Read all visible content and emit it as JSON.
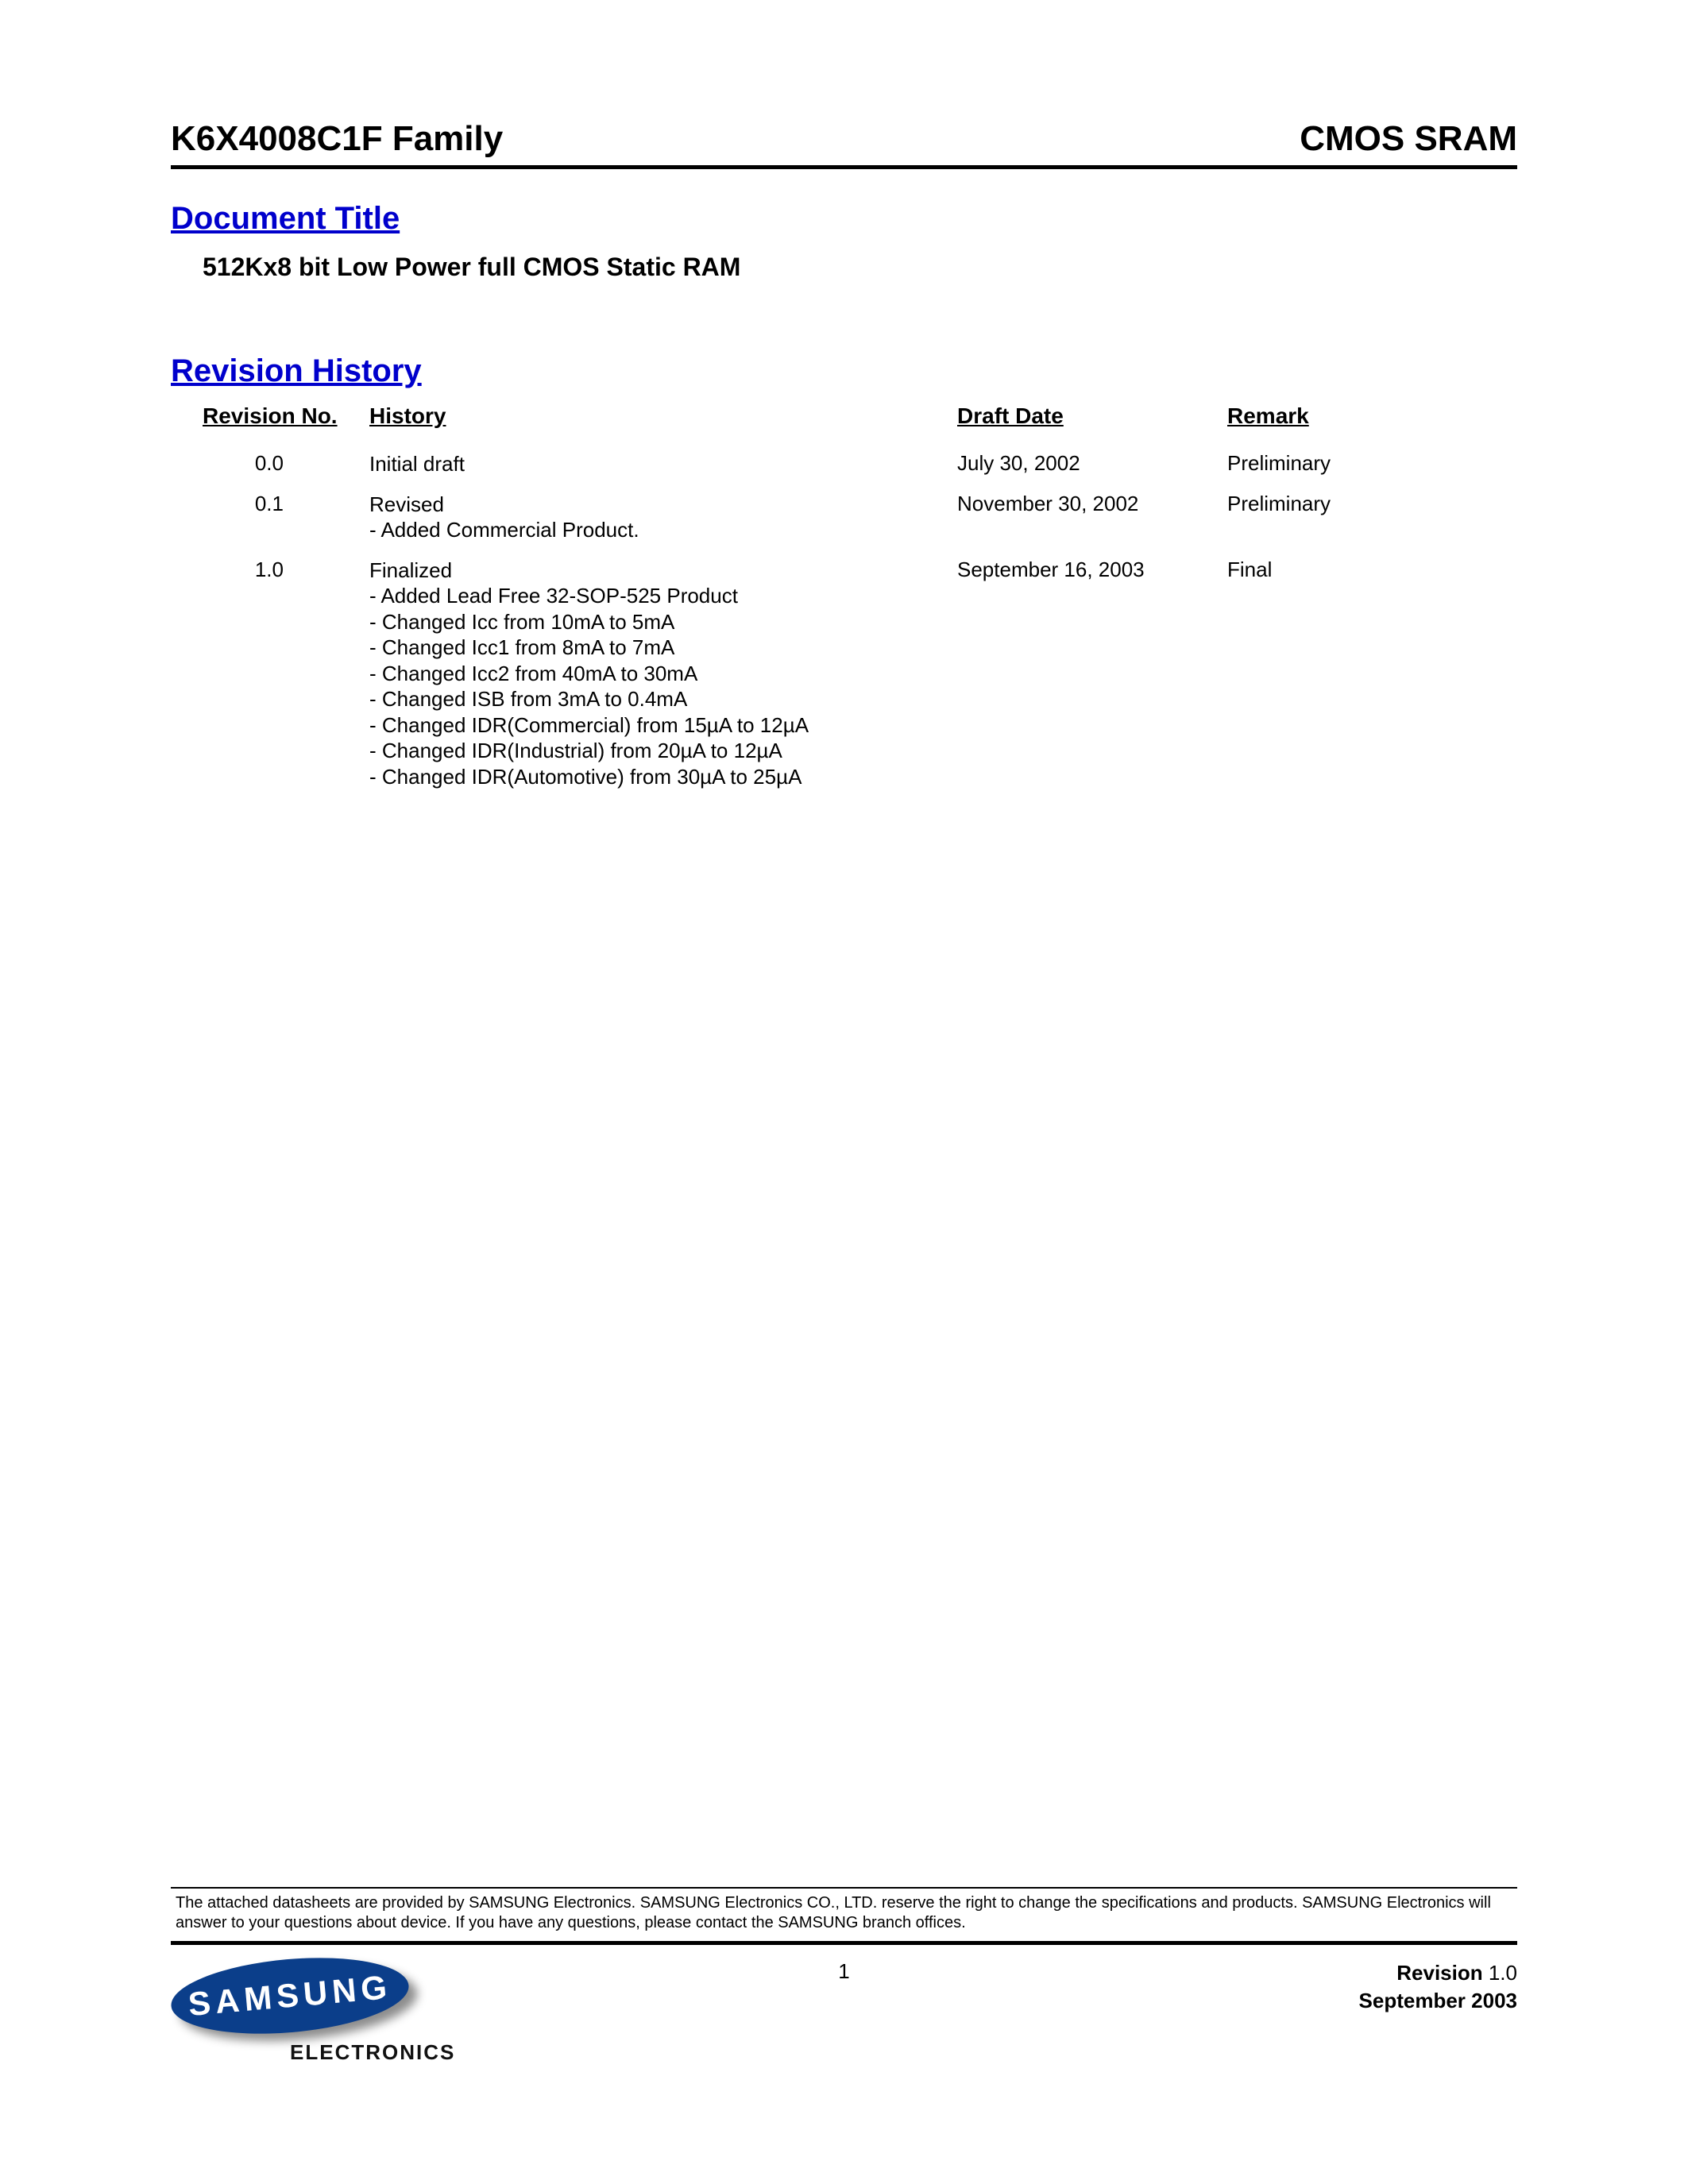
{
  "header": {
    "left": "K6X4008C1F Family",
    "right": "CMOS SRAM"
  },
  "document_title_heading": "Document Title",
  "subtitle": "512Kx8 bit Low Power full CMOS Static RAM",
  "revision_heading": "Revision History",
  "rev_columns": {
    "no": "Revision No.",
    "history": "History",
    "date": "Draft Date",
    "remark": "Remark"
  },
  "revisions": [
    {
      "no": "0.0",
      "history": [
        "Initial draft"
      ],
      "date": "July 30, 2002",
      "remark": "Preliminary"
    },
    {
      "no": "0.1",
      "history": [
        "Revised",
        "- Added Commercial Product."
      ],
      "date": "November 30, 2002",
      "remark": "Preliminary"
    },
    {
      "no": "1.0",
      "history": [
        "Finalized",
        "- Added Lead Free 32-SOP-525 Product",
        "- Changed Icc from 10mA to 5mA",
        "- Changed Icc1 from 8mA to 7mA",
        "- Changed Icc2 from 40mA to 30mA",
        "- Changed ISB from 3mA to 0.4mA",
        "- Changed IDR(Commercial) from 15µA to 12µA",
        "- Changed IDR(Industrial) from 20µA to 12µA",
        "- Changed IDR(Automotive) from 30µA to 25µA"
      ],
      "date": "September 16, 2003",
      "remark": "Final"
    }
  ],
  "disclaimer": "The attached datasheets are provided by SAMSUNG Electronics. SAMSUNG Electronics CO., LTD. reserve the right to change the specifications and products. SAMSUNG Electronics will answer to your questions about device. If you have any questions, please contact the SAMSUNG branch offices.",
  "logo": {
    "brand": "SAMSUNG",
    "sub": "ELECTRONICS",
    "brand_bg": "#0b3e8a",
    "brand_fg": "#ffffff"
  },
  "page_number": "1",
  "footer": {
    "revision_label": "Revision ",
    "revision_value": "1.0",
    "date_label": "September ",
    "date_value": "2003"
  }
}
